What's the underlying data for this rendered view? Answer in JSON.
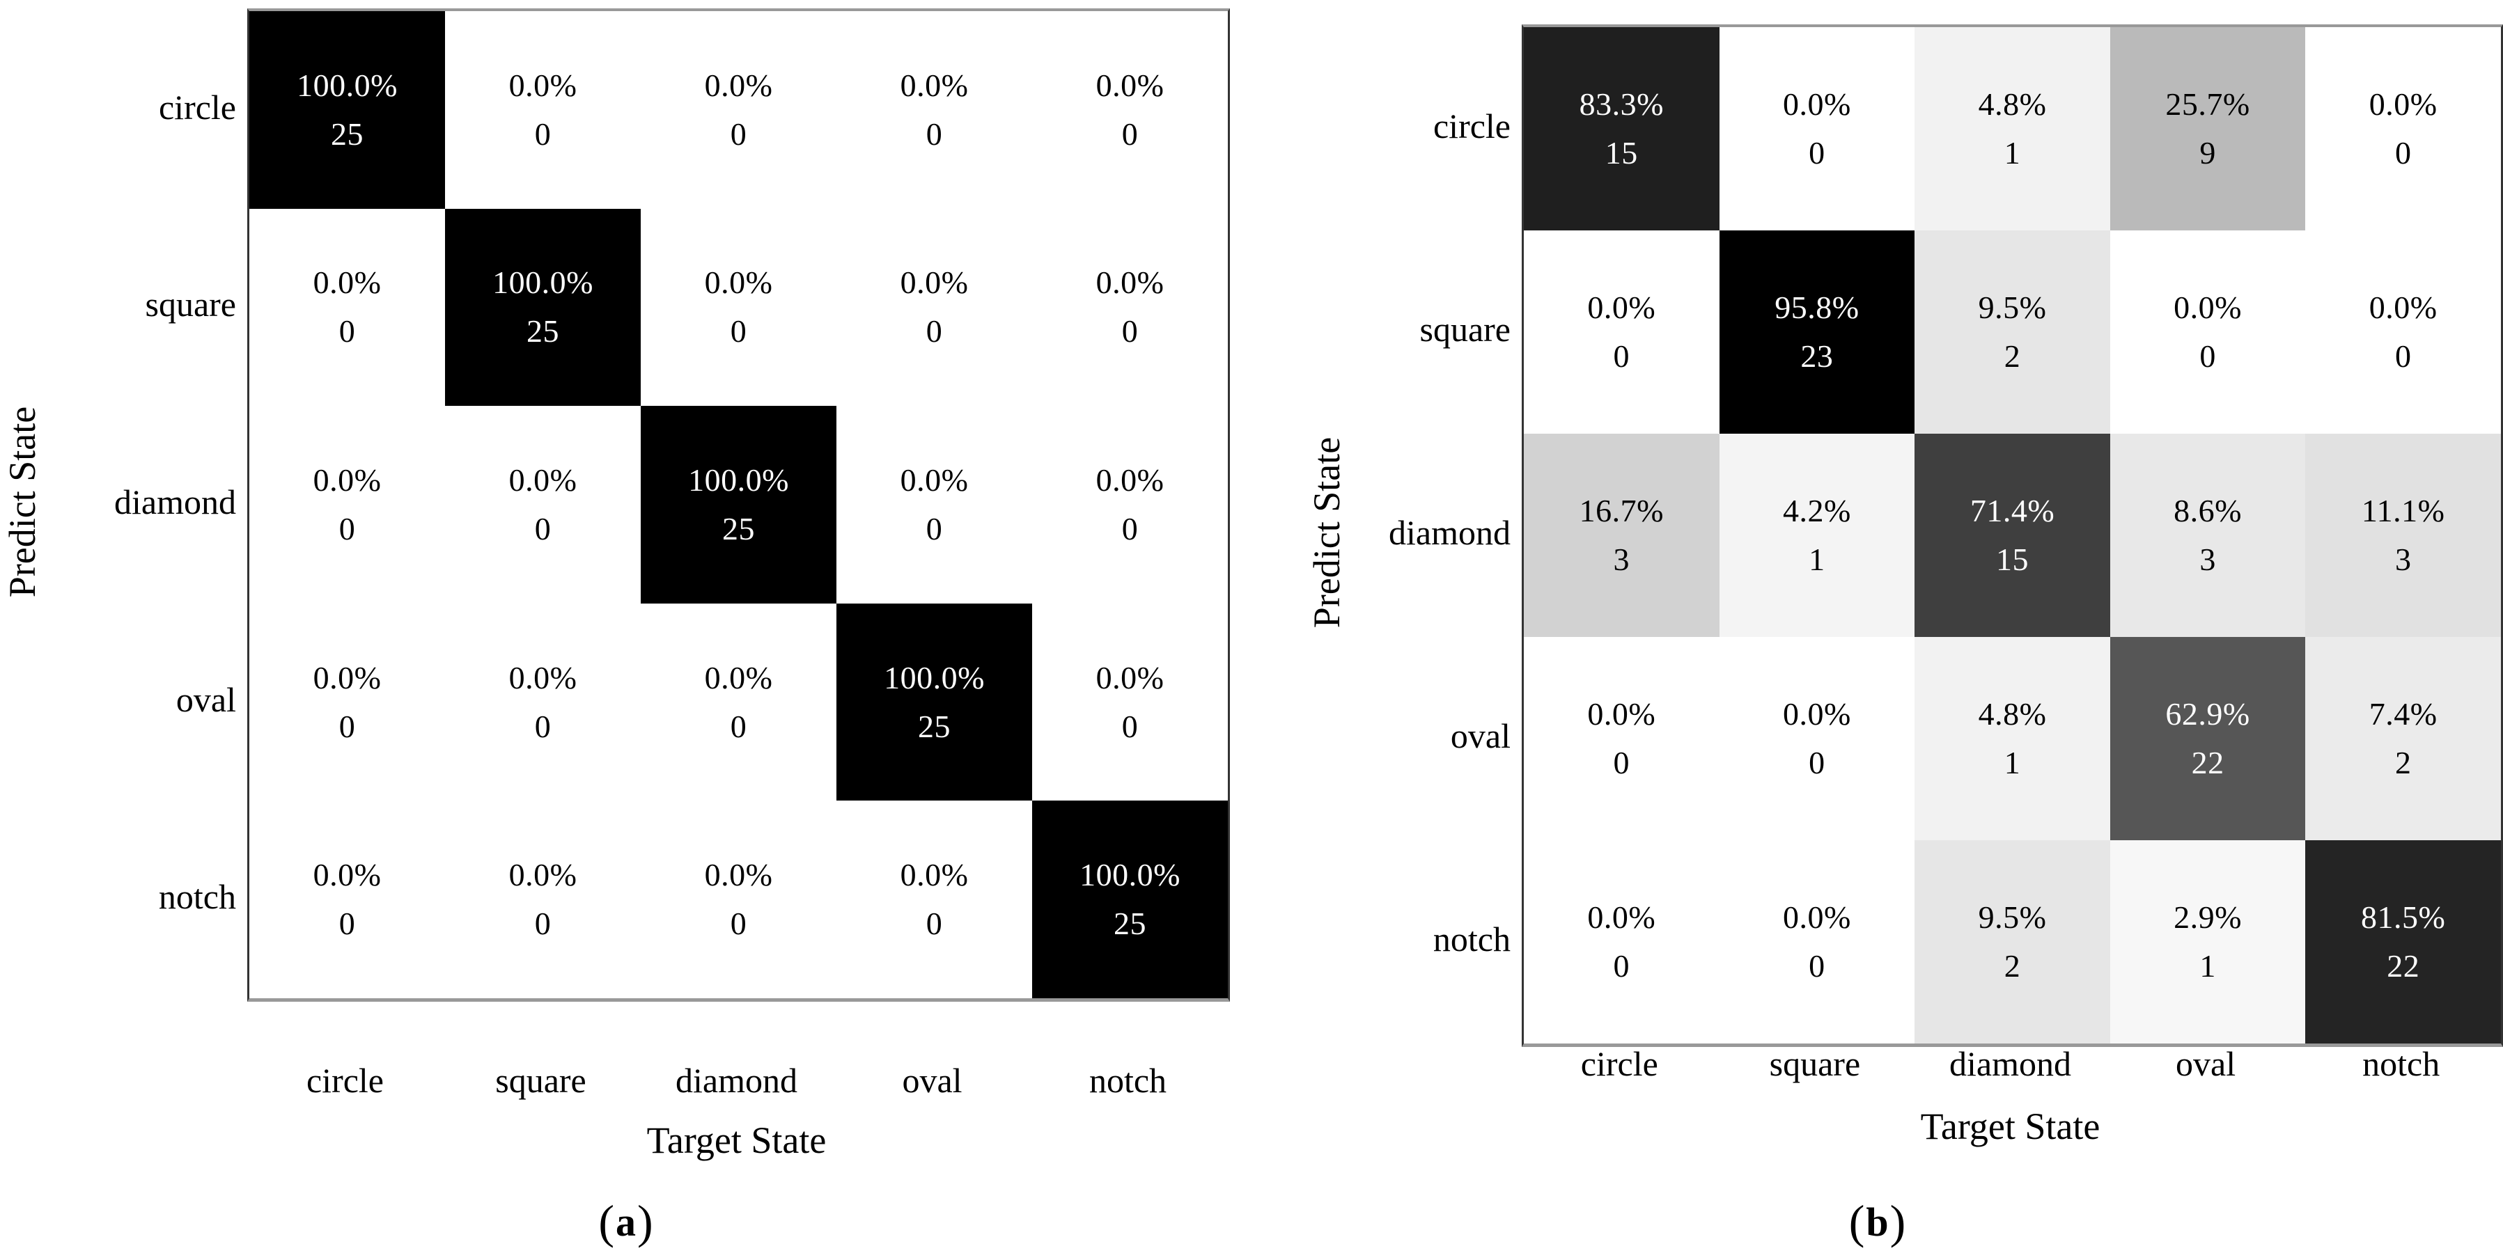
{
  "figure": {
    "background_color": "#ffffff",
    "text_color": "#000000",
    "panels": [
      {
        "id": "panel-a",
        "caption": {
          "prefix": "(",
          "letter": "a",
          "suffix": ")"
        }
      },
      {
        "id": "panel-b",
        "caption": {
          "prefix": "(",
          "letter": "b",
          "suffix": ")"
        }
      }
    ]
  },
  "chart_data": [
    {
      "type": "heatmap",
      "caption": "(a)",
      "xlabel": "Target State",
      "ylabel": "Predict State",
      "x_categories": [
        "circle",
        "square",
        "diamond",
        "oval",
        "notch"
      ],
      "y_categories": [
        "circle",
        "square",
        "diamond",
        "oval",
        "notch"
      ],
      "values_percent": [
        [
          100.0,
          0.0,
          0.0,
          0.0,
          0.0
        ],
        [
          0.0,
          100.0,
          0.0,
          0.0,
          0.0
        ],
        [
          0.0,
          0.0,
          100.0,
          0.0,
          0.0
        ],
        [
          0.0,
          0.0,
          0.0,
          100.0,
          0.0
        ],
        [
          0.0,
          0.0,
          0.0,
          0.0,
          100.0
        ]
      ],
      "values_count": [
        [
          25,
          0,
          0,
          0,
          0
        ],
        [
          0,
          25,
          0,
          0,
          0
        ],
        [
          0,
          0,
          25,
          0,
          0
        ],
        [
          0,
          0,
          0,
          25,
          0
        ],
        [
          0,
          0,
          0,
          0,
          25
        ]
      ],
      "cell_label_format": "{percent}% newline {count}",
      "colormap": "grayscale: 0% = white #ffffff, 100% = black #000000",
      "legend": "none",
      "grid": "off"
    },
    {
      "type": "heatmap",
      "caption": "(b)",
      "xlabel": "Target State",
      "ylabel": "Predict State",
      "x_categories": [
        "circle",
        "square",
        "diamond",
        "oval",
        "notch"
      ],
      "y_categories": [
        "circle",
        "square",
        "diamond",
        "oval",
        "notch"
      ],
      "values_percent": [
        [
          83.3,
          0.0,
          4.8,
          25.7,
          0.0
        ],
        [
          0.0,
          95.8,
          9.5,
          0.0,
          0.0
        ],
        [
          16.7,
          4.2,
          71.4,
          8.6,
          11.1
        ],
        [
          0.0,
          0.0,
          4.8,
          62.9,
          7.4
        ],
        [
          0.0,
          0.0,
          9.5,
          2.9,
          81.5
        ]
      ],
      "values_count": [
        [
          15,
          0,
          1,
          9,
          0
        ],
        [
          0,
          23,
          2,
          0,
          0
        ],
        [
          3,
          1,
          15,
          3,
          3
        ],
        [
          0,
          0,
          1,
          22,
          2
        ],
        [
          0,
          0,
          2,
          1,
          22
        ]
      ],
      "cell_label_format": "{percent}% newline {count}",
      "colormap": "grayscale: 0% = white #ffffff, 100% = black #000000",
      "legend": "none",
      "grid": "off"
    }
  ]
}
